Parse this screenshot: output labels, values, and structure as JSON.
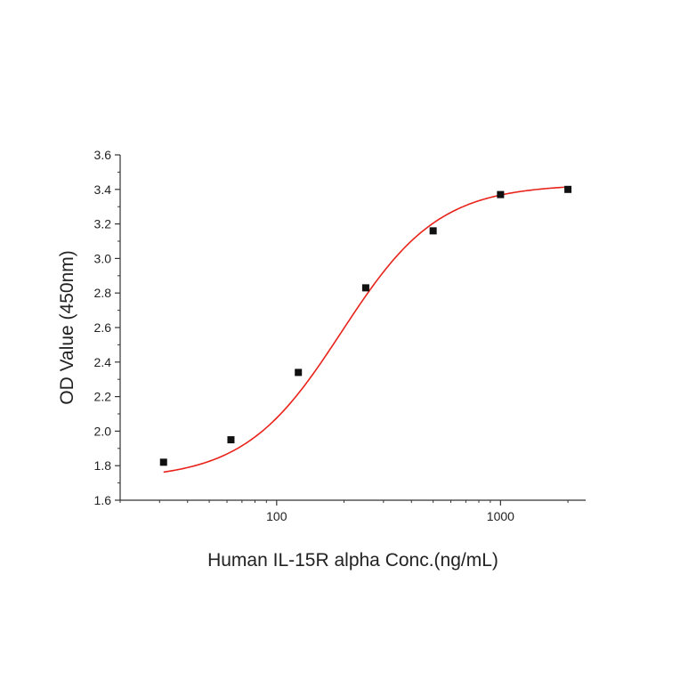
{
  "chart_data": {
    "type": "scatter",
    "title": "",
    "xlabel": "Human IL-15R alpha Conc.(ng/mL)",
    "ylabel": "OD Value (450nm)",
    "x_scale": "log",
    "xlim": [
      20,
      2400
    ],
    "ylim": [
      1.6,
      3.6
    ],
    "x_ticks": [
      100,
      1000
    ],
    "x_tick_labels": [
      "100",
      "1000"
    ],
    "y_ticks": [
      1.6,
      1.8,
      2.0,
      2.2,
      2.4,
      2.6,
      2.8,
      3.0,
      3.2,
      3.4,
      3.6
    ],
    "y_tick_labels": [
      "1.6",
      "1.8",
      "2.0",
      "2.2",
      "2.4",
      "2.6",
      "2.8",
      "3.0",
      "3.2",
      "3.4",
      "3.6"
    ],
    "grid": false,
    "legend": "none",
    "series": [
      {
        "kind": "points",
        "marker": "square",
        "color": "#111111",
        "x": [
          31.25,
          62.5,
          125,
          250,
          500,
          1000,
          2000
        ],
        "y": [
          1.82,
          1.95,
          2.34,
          2.83,
          3.16,
          3.37,
          3.4
        ]
      },
      {
        "kind": "fit",
        "model": "four-parameter logistic",
        "color": "#e8231a",
        "params": {
          "bottom": 1.72,
          "top": 3.43,
          "ec50": 195,
          "hill": 2.0
        },
        "x_range": [
          31.25,
          2000
        ]
      }
    ]
  }
}
